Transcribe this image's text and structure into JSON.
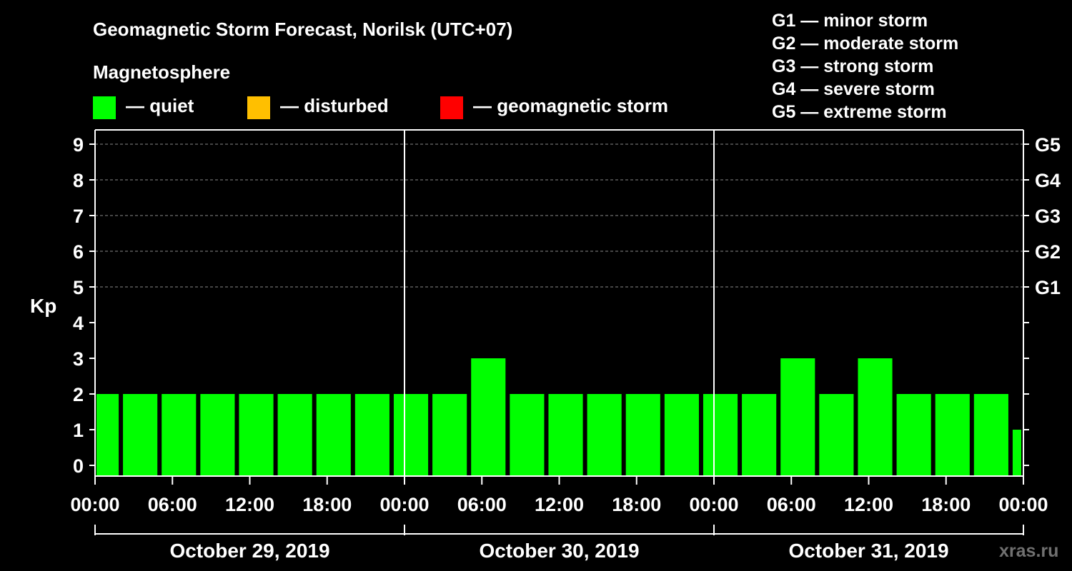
{
  "chart_data": {
    "type": "bar",
    "title": "Geomagnetic Storm Forecast, Norilsk (UTC+07)",
    "ylabel": "Kp",
    "ylim": [
      0,
      9
    ],
    "yticks": [
      "0",
      "1",
      "2",
      "3",
      "4",
      "5",
      "6",
      "7",
      "8",
      "9"
    ],
    "storm_levels": [
      {
        "kp": 5,
        "label": "G1"
      },
      {
        "kp": 6,
        "label": "G2"
      },
      {
        "kp": 7,
        "label": "G3"
      },
      {
        "kp": 8,
        "label": "G4"
      },
      {
        "kp": 9,
        "label": "G5"
      }
    ],
    "legend": {
      "title": "Magnetosphere",
      "items": [
        {
          "label": "— quiet",
          "color": "#00ff00"
        },
        {
          "label": "— disturbed",
          "color": "#ffbf00"
        },
        {
          "label": "— geomagnetic storm",
          "color": "#ff0000"
        }
      ]
    },
    "scale": [
      "G1 — minor storm",
      "G2 — moderate storm",
      "G3 — strong storm",
      "G4 — severe storm",
      "G5 — extreme storm"
    ],
    "x_hours_range": [
      0,
      72
    ],
    "xticks": [
      "00:00",
      "06:00",
      "12:00",
      "18:00",
      "00:00",
      "06:00",
      "12:00",
      "18:00",
      "00:00",
      "06:00",
      "12:00",
      "18:00",
      "00:00"
    ],
    "days": [
      "October 29, 2019",
      "October 30, 2019",
      "October 31, 2019"
    ],
    "interval_hours": 3,
    "first_interval_start": -1,
    "values": [
      2,
      2,
      2,
      2,
      2,
      2,
      2,
      2,
      2,
      2,
      3,
      2,
      2,
      2,
      2,
      2,
      2,
      2,
      3,
      2,
      3,
      2,
      2,
      2,
      1
    ],
    "bar_color": "#00ff00",
    "watermark": "xras.ru"
  }
}
